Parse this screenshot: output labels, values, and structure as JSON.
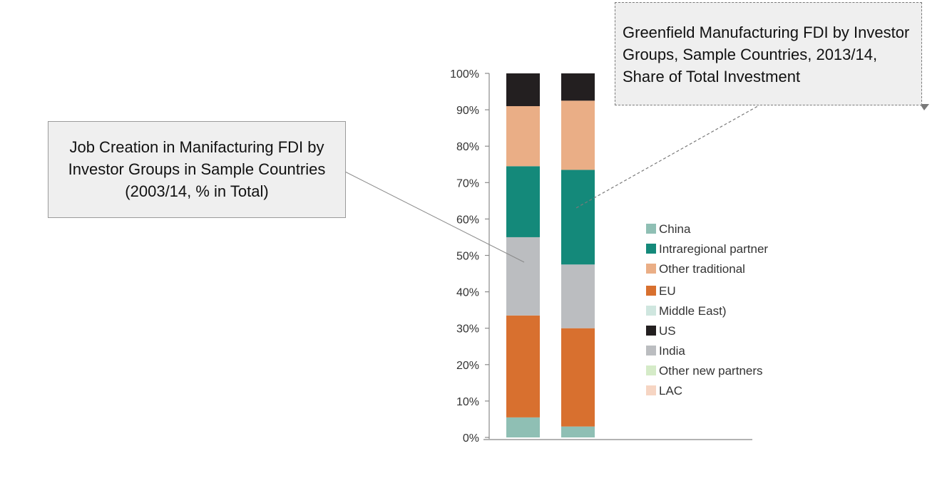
{
  "callouts": {
    "left_text": "Job Creation in Manifacturing FDI by Investor Groups in Sample Countries (2003/14, % in Total)",
    "right_text": "Greenfield Manufacturing FDI by Investor Groups, Sample Countries, 2013/14, Share of Total Investment"
  },
  "chart_data": {
    "type": "bar",
    "stacked": true,
    "categories": [
      "",
      ""
    ],
    "ylim": [
      0,
      100
    ],
    "y_ticks": [
      "0%",
      "10%",
      "20%",
      "30%",
      "40%",
      "50%",
      "60%",
      "70%",
      "80%",
      "90%",
      "100%"
    ],
    "series": [
      {
        "name": "China",
        "color": "#8fbfb4",
        "values": [
          5.5,
          3
        ]
      },
      {
        "name": "EU",
        "color": "#d8702f",
        "values": [
          28,
          27
        ]
      },
      {
        "name": "India",
        "color": "#bbbdc0",
        "values": [
          21.5,
          17.5
        ]
      },
      {
        "name": "Intraregional partner",
        "color": "#14897a",
        "values": [
          19.5,
          26
        ]
      },
      {
        "name": "Other traditional",
        "color": "#eaae86",
        "values": [
          16.5,
          19
        ]
      },
      {
        "name": "US",
        "color": "#231f20",
        "values": [
          9,
          7.5
        ]
      }
    ],
    "legend": [
      {
        "label": "China",
        "color": "#8fbfb4"
      },
      {
        "label": "Intraregional partner",
        "color": "#14897a"
      },
      {
        "label": "Other traditional",
        "color": "#eaae86"
      },
      {
        "label": "EU",
        "color": "#d8702f"
      },
      {
        "label": "Middle East)",
        "color": "#cfe6df"
      },
      {
        "label": "US",
        "color": "#231f20"
      },
      {
        "label": "India",
        "color": "#bbbdc0"
      },
      {
        "label": "Other new partners",
        "color": "#d5ebc8"
      },
      {
        "label": "LAC",
        "color": "#f6d5c3"
      }
    ],
    "legend_position": "right",
    "grid": false
  }
}
